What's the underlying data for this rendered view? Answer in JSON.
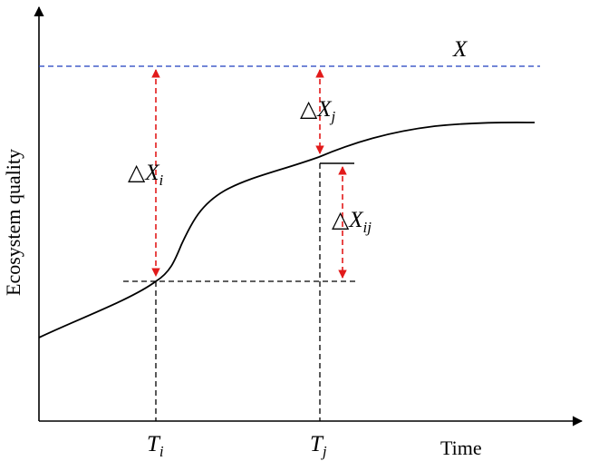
{
  "diagram": {
    "y_axis_label": "Ecosystem quality",
    "x_axis_label": "Time",
    "target_line_label": "X",
    "delta_symbol": "△",
    "delta_i": {
      "base": "X",
      "sub": "i"
    },
    "delta_j": {
      "base": "X",
      "sub": "j"
    },
    "delta_ij": {
      "base": "X",
      "sub": "ij"
    },
    "tick_i": {
      "base": "T",
      "sub": "i"
    },
    "tick_j": {
      "base": "T",
      "sub": "j"
    }
  },
  "colors": {
    "axis": "#000000",
    "curve": "#000000",
    "target_line": "#1f3fbf",
    "arrows": "#e21a1a",
    "guides": "#000000"
  }
}
